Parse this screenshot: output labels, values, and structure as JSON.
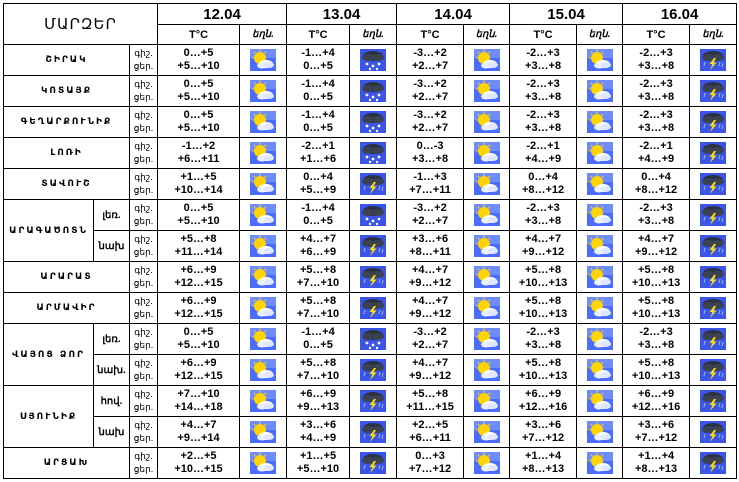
{
  "header": {
    "title": "ՄԱՐԶԵՐ",
    "temp_label": "T°C",
    "weather_label": "եղն.",
    "dates": [
      "12.04",
      "13.04",
      "14.04",
      "15.04",
      "16.04"
    ]
  },
  "day_label": "ցեր.",
  "night_label": "գիշ.",
  "colors": {
    "border": "#000000",
    "sun": "#ffd400",
    "cloud_light": "#3a5bff",
    "cloud_dark": "#2b3140",
    "lightning": "#ffe000",
    "snow": "#ffffff"
  },
  "rows": [
    {
      "region": "ՇԻՐԱԿ",
      "days": [
        {
          "night": "0…+5",
          "day": "+5…+10",
          "icon": "sun-cloud-icon"
        },
        {
          "night": "-1…+4",
          "day": "0…+5",
          "icon": "snow-cloud-icon"
        },
        {
          "night": "-3…+2",
          "day": "+2…+7",
          "icon": "sun-cloud-icon"
        },
        {
          "night": "-2…+3",
          "day": "+3…+8",
          "icon": "sun-cloud-icon"
        },
        {
          "night": "-2…+3",
          "day": "+3…+8",
          "icon": "storm-cloud-icon"
        }
      ]
    },
    {
      "region": "ԿՈՏԱՅՔ",
      "days": [
        {
          "night": "0…+5",
          "day": "+5…+10",
          "icon": "sun-cloud-icon"
        },
        {
          "night": "-1…+4",
          "day": "0…+5",
          "icon": "snow-cloud-icon"
        },
        {
          "night": "-3…+2",
          "day": "+2…+7",
          "icon": "sun-cloud-icon"
        },
        {
          "night": "-2…+3",
          "day": "+3…+8",
          "icon": "sun-cloud-icon"
        },
        {
          "night": "-2…+3",
          "day": "+3…+8",
          "icon": "storm-cloud-icon"
        }
      ]
    },
    {
      "region": "ԳԵՂԱՐՔՈՒՆԻՔ",
      "days": [
        {
          "night": "0…+5",
          "day": "+5…+10",
          "icon": "sun-cloud-icon"
        },
        {
          "night": "-1…+4",
          "day": "0…+5",
          "icon": "snow-cloud-icon"
        },
        {
          "night": "-3…+2",
          "day": "+2…+7",
          "icon": "sun-cloud-icon"
        },
        {
          "night": "-2…+3",
          "day": "+3…+8",
          "icon": "sun-cloud-icon"
        },
        {
          "night": "-2…+3",
          "day": "+3…+8",
          "icon": "storm-cloud-icon"
        }
      ]
    },
    {
      "region": "ԼՈՌԻ",
      "days": [
        {
          "night": "-1…+2",
          "day": "+6…+11",
          "icon": "sun-cloud-icon"
        },
        {
          "night": "-2…+1",
          "day": "+1…+6",
          "icon": "snow-cloud-icon"
        },
        {
          "night": "0…-3",
          "day": "+3…+8",
          "icon": "sun-cloud-icon"
        },
        {
          "night": "-2…+1",
          "day": "+4…+9",
          "icon": "sun-cloud-icon"
        },
        {
          "night": "-2…+1",
          "day": "+4…+9",
          "icon": "storm-cloud-icon"
        }
      ]
    },
    {
      "region": "ՏԱՎՈՒՇ",
      "days": [
        {
          "night": "+1…+5",
          "day": "+10…+14",
          "icon": "sun-cloud-icon"
        },
        {
          "night": "0…+4",
          "day": "+5…+9",
          "icon": "storm-cloud-icon"
        },
        {
          "night": "-1…+3",
          "day": "+7…+11",
          "icon": "sun-cloud-icon"
        },
        {
          "night": "0…+4",
          "day": "+8…+12",
          "icon": "sun-cloud-icon"
        },
        {
          "night": "0…+4",
          "day": "+8…+12",
          "icon": "storm-cloud-icon"
        }
      ]
    },
    {
      "region": "ԱՐԱԳԱԾՈՏՆ",
      "sub": "լեռ.",
      "days": [
        {
          "night": "0…+5",
          "day": "+5…+10",
          "icon": "sun-cloud-icon"
        },
        {
          "night": "-1…+4",
          "day": "0…+5",
          "icon": "snow-cloud-icon"
        },
        {
          "night": "-3…+2",
          "day": "+2…+7",
          "icon": "sun-cloud-icon"
        },
        {
          "night": "-2…+3",
          "day": "+3…+8",
          "icon": "sun-cloud-icon"
        },
        {
          "night": "-2…+3",
          "day": "+3…+8",
          "icon": "storm-cloud-icon"
        }
      ]
    },
    {
      "sub": "նախ",
      "days": [
        {
          "night": "+5…+8",
          "day": "+11…+14",
          "icon": "sun-cloud-icon"
        },
        {
          "night": "+4…+7",
          "day": "+6…+9",
          "icon": "storm-cloud-icon"
        },
        {
          "night": "+3…+6",
          "day": "+8…+11",
          "icon": "sun-cloud-icon"
        },
        {
          "night": "+4…+7",
          "day": "+9…+12",
          "icon": "sun-cloud-icon"
        },
        {
          "night": "+4…+7",
          "day": "+9…+12",
          "icon": "storm-cloud-icon"
        }
      ]
    },
    {
      "region": "ԱՐԱՐԱՏ",
      "days": [
        {
          "night": "+6…+9",
          "day": "+12…+15",
          "icon": "sun-cloud-icon"
        },
        {
          "night": "+5…+8",
          "day": "+7…+10",
          "icon": "storm-cloud-icon"
        },
        {
          "night": "+4…+7",
          "day": "+9…+12",
          "icon": "sun-cloud-icon"
        },
        {
          "night": "+5…+8",
          "day": "+10…+13",
          "icon": "sun-cloud-icon"
        },
        {
          "night": "+5…+8",
          "day": "+10…+13",
          "icon": "storm-cloud-icon"
        }
      ]
    },
    {
      "region": "ԱՐՄԱՎԻՐ",
      "days": [
        {
          "night": "+6…+9",
          "day": "+12…+15",
          "icon": "sun-cloud-icon"
        },
        {
          "night": "+5…+8",
          "day": "+7…+10",
          "icon": "storm-cloud-icon"
        },
        {
          "night": "+4…+7",
          "day": "+9…+12",
          "icon": "sun-cloud-icon"
        },
        {
          "night": "+5…+8",
          "day": "+10…+13",
          "icon": "sun-cloud-icon"
        },
        {
          "night": "+5…+8",
          "day": "+10…+13",
          "icon": "storm-cloud-icon"
        }
      ]
    },
    {
      "region": "ՎԱՅՈՑ ՁՈՐ",
      "sub": "լեռ.",
      "days": [
        {
          "night": "0…+5",
          "day": "+5…+10",
          "icon": "sun-cloud-icon"
        },
        {
          "night": "-1…+4",
          "day": "0…+5",
          "icon": "snow-cloud-icon"
        },
        {
          "night": "-3…+2",
          "day": "+2…+7",
          "icon": "sun-cloud-icon"
        },
        {
          "night": "-2…+3",
          "day": "+3…+8",
          "icon": "sun-cloud-icon"
        },
        {
          "night": "-2…+3",
          "day": "+3…+8",
          "icon": "storm-cloud-icon"
        }
      ]
    },
    {
      "sub": "նախ.",
      "days": [
        {
          "night": "+6…+9",
          "day": "+12…+15",
          "icon": "sun-cloud-icon"
        },
        {
          "night": "+5…+8",
          "day": "+7…+10",
          "icon": "storm-cloud-icon"
        },
        {
          "night": "+4…+7",
          "day": "+9…+12",
          "icon": "sun-cloud-icon"
        },
        {
          "night": "+5…+8",
          "day": "+10…+13",
          "icon": "sun-cloud-icon"
        },
        {
          "night": "+5…+8",
          "day": "+10…+13",
          "icon": "storm-cloud-icon"
        }
      ]
    },
    {
      "region": "ՍՅՈՒՆԻՔ",
      "sub": "հով.",
      "days": [
        {
          "night": "+7…+10",
          "day": "+14…+18",
          "icon": "sun-cloud-icon"
        },
        {
          "night": "+6…+9",
          "day": "+9…+13",
          "icon": "storm-cloud-icon"
        },
        {
          "night": "+5…+8",
          "day": "+11…+15",
          "icon": "sun-cloud-icon"
        },
        {
          "night": "+6…+9",
          "day": "+12…+16",
          "icon": "sun-cloud-icon"
        },
        {
          "night": "+6…+9",
          "day": "+12…+16",
          "icon": "storm-cloud-icon"
        }
      ]
    },
    {
      "sub": "նախ",
      "days": [
        {
          "night": "+4…+7",
          "day": "+9…+14",
          "icon": "sun-cloud-icon"
        },
        {
          "night": "+3…+6",
          "day": "+4…+9",
          "icon": "storm-cloud-icon"
        },
        {
          "night": "+2…+5",
          "day": "+6…+11",
          "icon": "sun-cloud-icon"
        },
        {
          "night": "+3…+6",
          "day": "+7…+12",
          "icon": "sun-cloud-icon"
        },
        {
          "night": "+3…+6",
          "day": "+7…+12",
          "icon": "storm-cloud-icon"
        }
      ]
    },
    {
      "region": "ԱՐՑԱԽ",
      "days": [
        {
          "night": "+2…+5",
          "day": "+10…+15",
          "icon": "sun-cloud-icon"
        },
        {
          "night": "+1…+5",
          "day": "+5…+10",
          "icon": "storm-cloud-icon"
        },
        {
          "night": "0…+3",
          "day": "+7…+12",
          "icon": "sun-cloud-icon"
        },
        {
          "night": "+1…+4",
          "day": "+8…+13",
          "icon": "sun-cloud-icon"
        },
        {
          "night": "+1…+4",
          "day": "+8…+13",
          "icon": "storm-cloud-icon"
        }
      ]
    }
  ]
}
